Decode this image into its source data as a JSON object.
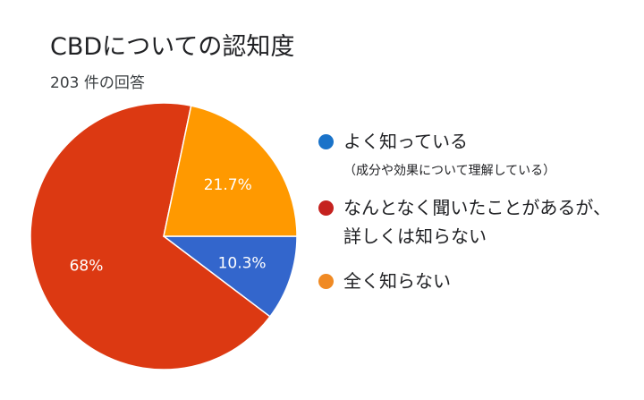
{
  "chart_data": {
    "type": "pie",
    "title": "CBDについての認知度",
    "subtitle": "203 件の回答",
    "slices": [
      {
        "label": "よく知っている",
        "note": "（成分や効果について理解している）",
        "value": 10.3,
        "color": "#3366cc",
        "pct_label": "10.3%"
      },
      {
        "label": "なんとなく聞いたことがあるが、",
        "label2": "詳しくは知らない",
        "value": 68.0,
        "color": "#dc3912",
        "pct_label": "68%"
      },
      {
        "label": "全く知らない",
        "value": 21.7,
        "color": "#ff9900",
        "pct_label": "21.7%"
      }
    ]
  }
}
